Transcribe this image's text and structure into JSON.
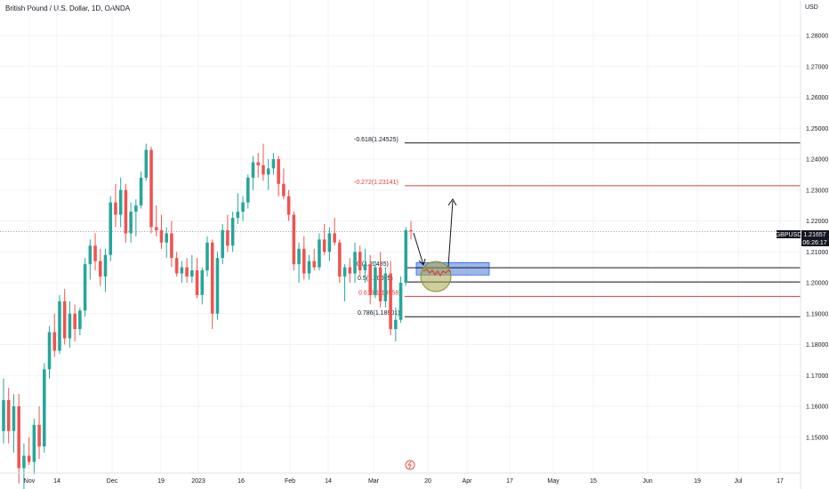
{
  "chart_data": {
    "type": "candlestick",
    "title": "British Pound / U.S. Dollar, 1D, OANDA",
    "currency": "USD",
    "symbol": "GBPUSD",
    "last_price": "1.21657",
    "countdown": "06:26:17",
    "ylim": [
      1.14,
      1.293
    ],
    "y_ticks": [
      "1.28000",
      "1.27000",
      "1.26000",
      "1.25000",
      "1.24000",
      "1.23000",
      "1.22000",
      "1.21000",
      "1.20000",
      "1.19000",
      "1.18000",
      "1.17000",
      "1.16000",
      "1.15000"
    ],
    "x_ticks": [
      "Nov",
      "14",
      "Dec",
      "19",
      "2023",
      "16",
      "Feb",
      "14",
      "Mar",
      "20",
      "Apr",
      "17",
      "May",
      "15",
      "Jun",
      "19",
      "Jul",
      "17"
    ],
    "candles": [
      [
        1.152,
        1.169,
        1.148,
        1.162
      ],
      [
        1.162,
        1.166,
        1.148,
        1.152
      ],
      [
        1.152,
        1.164,
        1.145,
        1.16
      ],
      [
        1.16,
        1.164,
        1.135,
        1.14
      ],
      [
        1.14,
        1.148,
        1.133,
        1.144
      ],
      [
        1.144,
        1.15,
        1.141,
        1.142
      ],
      [
        1.142,
        1.156,
        1.138,
        1.154
      ],
      [
        1.154,
        1.16,
        1.143,
        1.147
      ],
      [
        1.147,
        1.174,
        1.145,
        1.172
      ],
      [
        1.172,
        1.186,
        1.169,
        1.184
      ],
      [
        1.184,
        1.19,
        1.176,
        1.178
      ],
      [
        1.178,
        1.196,
        1.177,
        1.194
      ],
      [
        1.194,
        1.198,
        1.18,
        1.182
      ],
      [
        1.182,
        1.194,
        1.179,
        1.19
      ],
      [
        1.19,
        1.193,
        1.181,
        1.185
      ],
      [
        1.185,
        1.192,
        1.183,
        1.191
      ],
      [
        1.191,
        1.208,
        1.189,
        1.206
      ],
      [
        1.206,
        1.214,
        1.201,
        1.212
      ],
      [
        1.212,
        1.216,
        1.204,
        1.207
      ],
      [
        1.207,
        1.211,
        1.199,
        1.202
      ],
      [
        1.202,
        1.211,
        1.197,
        1.209
      ],
      [
        1.209,
        1.228,
        1.207,
        1.226
      ],
      [
        1.226,
        1.232,
        1.218,
        1.222
      ],
      [
        1.222,
        1.234,
        1.218,
        1.23
      ],
      [
        1.23,
        1.232,
        1.213,
        1.216
      ],
      [
        1.216,
        1.226,
        1.213,
        1.223
      ],
      [
        1.223,
        1.227,
        1.215,
        1.225
      ],
      [
        1.225,
        1.236,
        1.224,
        1.234
      ],
      [
        1.234,
        1.245,
        1.233,
        1.243
      ],
      [
        1.243,
        1.244,
        1.216,
        1.218
      ],
      [
        1.218,
        1.225,
        1.215,
        1.217
      ],
      [
        1.217,
        1.222,
        1.211,
        1.213
      ],
      [
        1.213,
        1.218,
        1.208,
        1.216
      ],
      [
        1.216,
        1.22,
        1.205,
        1.208
      ],
      [
        1.208,
        1.21,
        1.202,
        1.203
      ],
      [
        1.203,
        1.207,
        1.2,
        1.205
      ],
      [
        1.205,
        1.208,
        1.2,
        1.202
      ],
      [
        1.202,
        1.209,
        1.2,
        1.204
      ],
      [
        1.204,
        1.208,
        1.195,
        1.196
      ],
      [
        1.196,
        1.205,
        1.193,
        1.204
      ],
      [
        1.204,
        1.215,
        1.202,
        1.213
      ],
      [
        1.213,
        1.214,
        1.185,
        1.19
      ],
      [
        1.19,
        1.21,
        1.188,
        1.208
      ],
      [
        1.208,
        1.219,
        1.206,
        1.217
      ],
      [
        1.217,
        1.222,
        1.21,
        1.212
      ],
      [
        1.212,
        1.223,
        1.21,
        1.221
      ],
      [
        1.221,
        1.229,
        1.219,
        1.223
      ],
      [
        1.223,
        1.228,
        1.22,
        1.226
      ],
      [
        1.226,
        1.235,
        1.224,
        1.234
      ],
      [
        1.234,
        1.241,
        1.23,
        1.239
      ],
      [
        1.239,
        1.242,
        1.234,
        1.238
      ],
      [
        1.238,
        1.245,
        1.233,
        1.235
      ],
      [
        1.235,
        1.24,
        1.23,
        1.237
      ],
      [
        1.237,
        1.242,
        1.235,
        1.24
      ],
      [
        1.24,
        1.241,
        1.228,
        1.232
      ],
      [
        1.232,
        1.237,
        1.227,
        1.228
      ],
      [
        1.228,
        1.23,
        1.22,
        1.222
      ],
      [
        1.222,
        1.223,
        1.204,
        1.206
      ],
      [
        1.206,
        1.213,
        1.2,
        1.211
      ],
      [
        1.211,
        1.215,
        1.201,
        1.203
      ],
      [
        1.203,
        1.209,
        1.201,
        1.207
      ],
      [
        1.207,
        1.211,
        1.204,
        1.205
      ],
      [
        1.205,
        1.216,
        1.204,
        1.214
      ],
      [
        1.214,
        1.219,
        1.209,
        1.21
      ],
      [
        1.21,
        1.218,
        1.207,
        1.216
      ],
      [
        1.216,
        1.221,
        1.212,
        1.213
      ],
      [
        1.213,
        1.214,
        1.2,
        1.202
      ],
      [
        1.202,
        1.206,
        1.194,
        1.205
      ],
      [
        1.205,
        1.208,
        1.2,
        1.203
      ],
      [
        1.203,
        1.213,
        1.2,
        1.21
      ],
      [
        1.21,
        1.212,
        1.202,
        1.204
      ],
      [
        1.204,
        1.211,
        1.2,
        1.206
      ],
      [
        1.206,
        1.209,
        1.193,
        1.196
      ],
      [
        1.196,
        1.207,
        1.195,
        1.205
      ],
      [
        1.205,
        1.21,
        1.192,
        1.194
      ],
      [
        1.194,
        1.205,
        1.192,
        1.203
      ],
      [
        1.203,
        1.207,
        1.183,
        1.185
      ],
      [
        1.185,
        1.192,
        1.181,
        1.188
      ],
      [
        1.188,
        1.202,
        1.187,
        1.2
      ],
      [
        1.2,
        1.218,
        1.199,
        1.217
      ],
      [
        1.217,
        1.22,
        1.214,
        1.2166
      ]
    ],
    "fib_levels": [
      {
        "label": "-0.618(1.24525)",
        "value": 1.24525,
        "color": "#131722"
      },
      {
        "label": "-0.272(1.23141)",
        "value": 1.23141,
        "color": "#e53935"
      },
      {
        "label": "0.(1.20485)",
        "value": 1.20485,
        "color": "#131722"
      },
      {
        "label": "0.5(1.20025)",
        "value": 1.20025,
        "color": "#131722"
      },
      {
        "label": "0.618(1.19558)",
        "value": 1.19558,
        "color": "#e53935"
      },
      {
        "label": "0.786(1.18901)",
        "value": 1.18901,
        "color": "#131722"
      }
    ],
    "zone": {
      "top": 1.2065,
      "bottom": 1.2025,
      "color": "#4a7bd4"
    },
    "colors": {
      "up": "#26a69a",
      "down": "#ef5350",
      "grid": "#f0f3fa",
      "text": "#131722",
      "badge_bg": "#131722"
    }
  }
}
